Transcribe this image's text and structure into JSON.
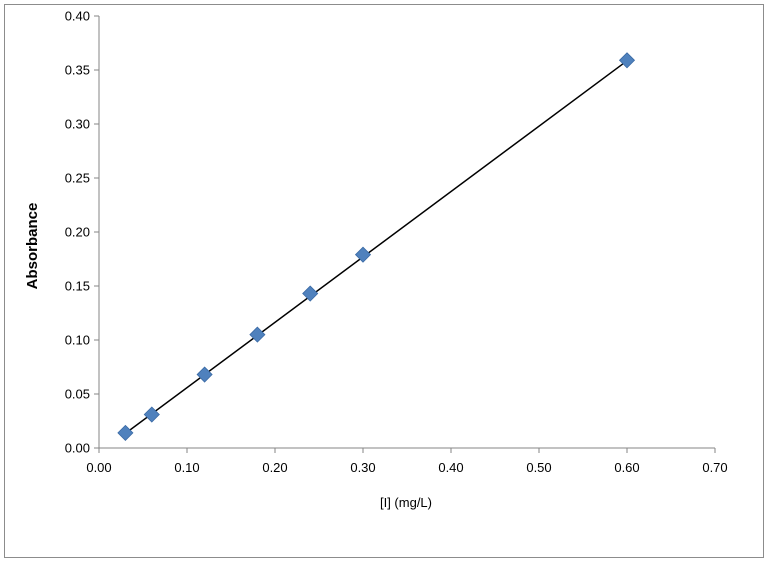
{
  "chart_data": {
    "type": "scatter",
    "title": "",
    "xlabel": "[I] (mg/L)",
    "ylabel": "Absorbance",
    "xlim": [
      0,
      0.7
    ],
    "ylim": [
      0,
      0.4
    ],
    "x_ticks": [
      "0.00",
      "0.10",
      "0.20",
      "0.30",
      "0.40",
      "0.50",
      "0.60",
      "0.70"
    ],
    "y_ticks": [
      "0.00",
      "0.05",
      "0.10",
      "0.15",
      "0.20",
      "0.25",
      "0.30",
      "0.35",
      "0.40"
    ],
    "grid": false,
    "legend": "none",
    "series": [
      {
        "x": [
          0.03,
          0.06,
          0.12,
          0.18,
          0.24,
          0.3,
          0.6
        ],
        "y": [
          0.014,
          0.031,
          0.068,
          0.105,
          0.143,
          0.179,
          0.359
        ],
        "marker": "diamond",
        "color": "#4f81bd"
      }
    ],
    "trendline": {
      "type": "linear",
      "x": [
        0.03,
        0.6
      ],
      "y": [
        0.0135,
        0.3585
      ],
      "color": "#000000"
    }
  }
}
